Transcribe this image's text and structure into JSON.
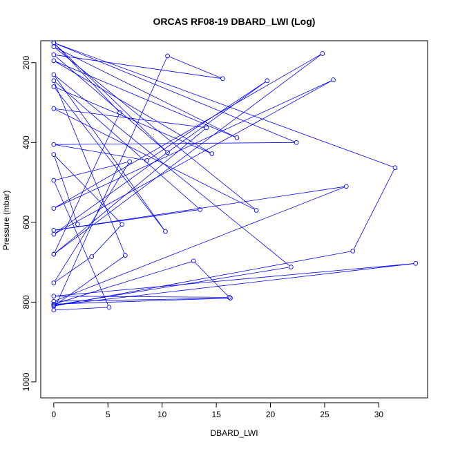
{
  "chart_data": {
    "type": "line",
    "title": "ORCAS RF08-19 DBARD_LWI (Log)",
    "xlabel": "DBARD_LWI",
    "ylabel": "Pressure (mbar)",
    "xlim": [
      -1.2,
      34.5
    ],
    "ylim": [
      1040,
      145
    ],
    "y_reversed": true,
    "x_ticks": [
      0,
      5,
      10,
      15,
      20,
      25,
      30
    ],
    "y_ticks": [
      200,
      400,
      600,
      800,
      1000
    ],
    "series_color": "#0000ff",
    "marker": "open-circle",
    "series": [
      {
        "x": [
          0,
          24.8,
          0,
          25.8,
          0,
          19.7,
          8.6,
          0,
          22.4,
          0,
          31.5,
          27.6,
          0,
          6.6,
          0,
          13.5,
          0,
          27.0,
          0,
          16.3,
          0,
          12.9,
          16.2,
          0,
          33.4,
          0,
          21.9,
          0,
          10.3,
          0,
          14.6,
          0,
          16.9,
          0,
          18.7,
          0,
          14.1,
          0,
          6.1,
          0,
          10.5,
          0,
          15.6,
          10.5,
          0,
          5.1,
          0,
          7.0,
          0,
          3.5,
          6.3,
          0,
          2.2
        ],
        "y": [
          680,
          177,
          565,
          243,
          630,
          245,
          445,
          405,
          400,
          150,
          463,
          672,
          810,
          683,
          245,
          568,
          620,
          510,
          798,
          790,
          805,
          697,
          788,
          785,
          703,
          808,
          712,
          230,
          623,
          260,
          428,
          195,
          388,
          160,
          570,
          315,
          363,
          680,
          325,
          150,
          425,
          180,
          240,
          183,
          820,
          813,
          495,
          448,
          752,
          686,
          605,
          430,
          605
        ]
      }
    ]
  }
}
